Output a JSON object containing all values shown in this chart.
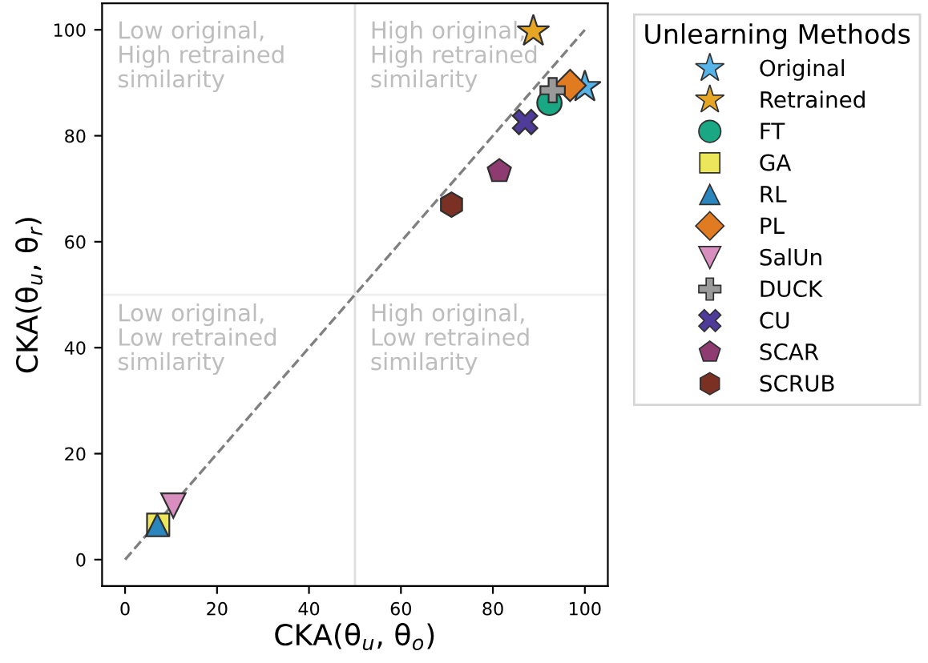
{
  "chart_data": {
    "type": "scatter",
    "xlabel": "CKA(θ$_{u}$, θ$_{o}$)",
    "ylabel": "CKA(θ$_{u}$, θ$_{r}$)",
    "legend_title": "Unlearning Methods",
    "legend": "right",
    "grid": false,
    "xlim": [
      -5,
      105
    ],
    "ylim": [
      -5,
      105
    ],
    "xticks": [
      0,
      20,
      40,
      60,
      80,
      100
    ],
    "yticks": [
      0,
      20,
      40,
      60,
      80,
      100
    ],
    "ref_lines": [
      {
        "axis": "x",
        "value": 50,
        "color": "#dedede"
      },
      {
        "axis": "y",
        "value": 50,
        "color": "#efefef"
      }
    ],
    "annotations": [
      "Low original,\nHigh retrained\nsimilarity",
      "High original,\nHigh retrained\nsimilarity",
      "Low original,\nLow retrained\nsimilarity",
      "High original,\nLow retrained\nsimilarity"
    ],
    "series": [
      {
        "type": "line",
        "x": [
          0,
          100
        ],
        "values": [
          0,
          100
        ],
        "color": "#808080",
        "line_style": "dashed",
        "marker": "none"
      },
      {
        "name": "Original",
        "x": [
          100
        ],
        "values": [
          89.2
        ],
        "color": "#56b4e9",
        "marker": "star"
      },
      {
        "name": "Retrained",
        "x": [
          88.8
        ],
        "values": [
          99.7
        ],
        "color": "#e6a623",
        "marker": "star"
      },
      {
        "name": "FT",
        "x": [
          92.3
        ],
        "values": [
          86.2
        ],
        "color": "#1aa783",
        "marker": "circle"
      },
      {
        "name": "GA",
        "x": [
          7.2
        ],
        "values": [
          6.6
        ],
        "color": "#ece65a",
        "marker": "square"
      },
      {
        "name": "RL",
        "x": [
          7
        ],
        "values": [
          6.5
        ],
        "color": "#2a86bd",
        "marker": "triangle"
      },
      {
        "name": "PL",
        "x": [
          96.8
        ],
        "values": [
          89.5
        ],
        "color": "#e07b22",
        "marker": "diamond"
      },
      {
        "name": "SalUn",
        "x": [
          10.5
        ],
        "values": [
          10.2
        ],
        "color": "#d88fc0",
        "marker": "triangle_down"
      },
      {
        "name": "DUCK",
        "x": [
          93
        ],
        "values": [
          88.6
        ],
        "color": "#9a9a9a",
        "marker": "plus"
      },
      {
        "name": "CU",
        "x": [
          87
        ],
        "values": [
          82.6
        ],
        "color": "#4f3b9a",
        "marker": "cross"
      },
      {
        "name": "SCAR",
        "x": [
          81.4
        ],
        "values": [
          73.3
        ],
        "color": "#8e3b72"
      },
      {
        "name": "SCRUB",
        "x": [
          71
        ],
        "values": [
          67
        ],
        "color": "#7a3124"
      }
    ]
  }
}
